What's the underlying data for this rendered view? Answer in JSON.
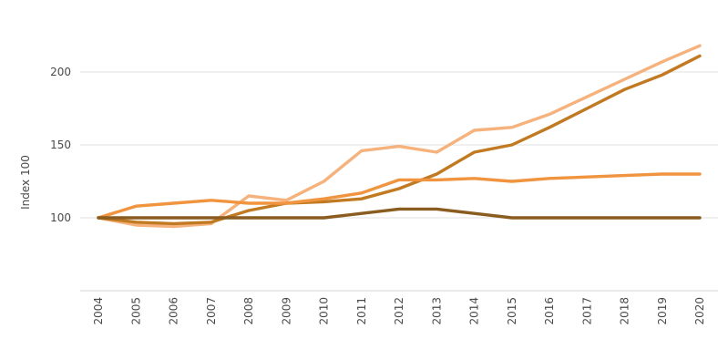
{
  "chart_data": {
    "type": "line",
    "ylabel": "Index 100",
    "xlabel": "",
    "ylim": [
      50,
      225
    ],
    "y_ticks": [
      100,
      150,
      200
    ],
    "grid": true,
    "categories": [
      "2004",
      "2005",
      "2006",
      "2007",
      "2008",
      "2009",
      "2010",
      "2011",
      "2012",
      "2013",
      "2014",
      "2015",
      "2016",
      "2017",
      "2018",
      "2019",
      "2020"
    ],
    "series": [
      {
        "color": "#f6b27d",
        "values": [
          100,
          95,
          94,
          96,
          115,
          112,
          125,
          146,
          149,
          145,
          160,
          162,
          171,
          183,
          195,
          207,
          218
        ]
      },
      {
        "color": "#c27a22",
        "values": [
          100,
          97,
          96,
          97,
          105,
          110,
          111,
          113,
          120,
          130,
          145,
          150,
          162,
          175,
          188,
          198,
          211
        ]
      },
      {
        "color": "#f0943f",
        "values": [
          100,
          108,
          110,
          112,
          110,
          110,
          113,
          117,
          126,
          126,
          127,
          125,
          127,
          128,
          129,
          130,
          130
        ]
      },
      {
        "color": "#8a5c20",
        "values": [
          100,
          100,
          100,
          100,
          100,
          100,
          100,
          103,
          106,
          106,
          103,
          100,
          100,
          100,
          100,
          100,
          100
        ]
      }
    ]
  }
}
